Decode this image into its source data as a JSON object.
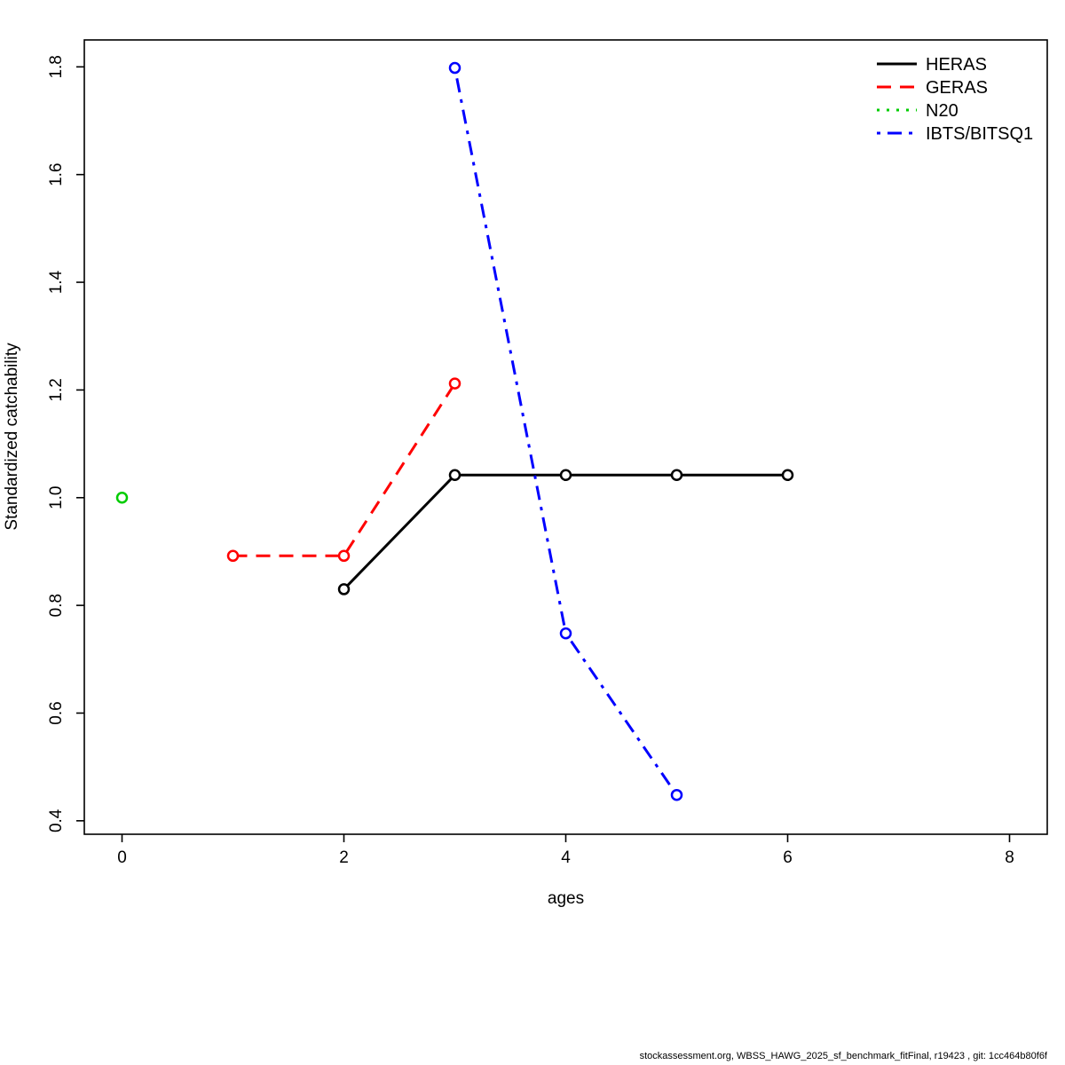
{
  "footer": {
    "text": "stockassessment.org, WBSS_HAWG_2025_sf_benchmark_fitFinal, r19423 , git: 1cc464b80f6f"
  },
  "chart_data": {
    "type": "line",
    "title": "",
    "xlabel": "ages",
    "ylabel": "Standardized catchability",
    "xlim": [
      -0.34,
      8.34
    ],
    "ylim": [
      0.375,
      1.85
    ],
    "xticks": [
      0,
      2,
      4,
      6,
      8
    ],
    "yticks": [
      0.4,
      0.6,
      0.8,
      1.0,
      1.2,
      1.4,
      1.6,
      1.8
    ],
    "grid": false,
    "legend_position": "top-right",
    "marker": "open-circle",
    "series": [
      {
        "name": "HERAS",
        "color": "#000000",
        "dash": "solid",
        "x": [
          2,
          3,
          4,
          5,
          6
        ],
        "y": [
          0.83,
          1.042,
          1.042,
          1.042,
          1.042
        ]
      },
      {
        "name": "GERAS",
        "color": "#ff0000",
        "dash": "dashed",
        "x": [
          1,
          2,
          3
        ],
        "y": [
          0.892,
          0.892,
          1.212
        ]
      },
      {
        "name": "N20",
        "color": "#00cc00",
        "dash": "dotted",
        "x": [
          0
        ],
        "y": [
          1.0
        ]
      },
      {
        "name": "IBTS/BITSQ1",
        "color": "#0000ff",
        "dash": "dashdot",
        "x": [
          3,
          4,
          5
        ],
        "y": [
          1.798,
          0.748,
          0.448
        ]
      }
    ]
  }
}
